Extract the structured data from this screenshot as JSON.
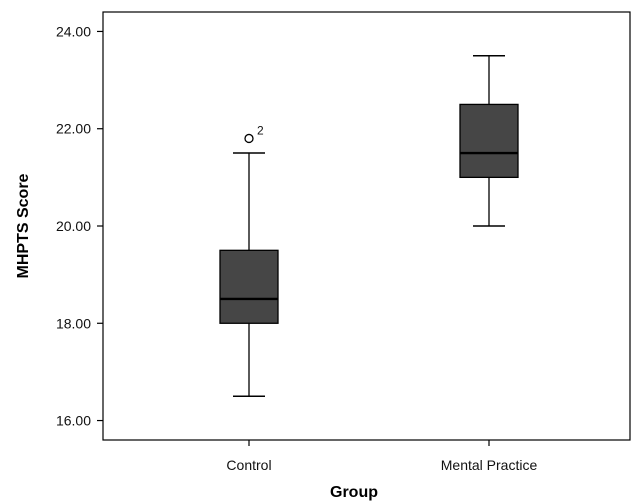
{
  "chart_data": {
    "type": "boxplot",
    "xlabel": "Group",
    "ylabel": "MHPTS Score",
    "ylim": [
      15.6,
      24.4
    ],
    "yticks": [
      16.0,
      18.0,
      20.0,
      22.0,
      24.0
    ],
    "ytick_labels": [
      "16.00",
      "18.00",
      "20.00",
      "22.00",
      "24.00"
    ],
    "grid": false,
    "legend": "none",
    "box_color": "#464646",
    "categories": [
      "Control",
      "Mental Practice"
    ],
    "boxes": [
      {
        "category": "Control",
        "whisker_low": 16.5,
        "q1": 18.0,
        "median": 18.5,
        "q3": 19.5,
        "whisker_high": 21.5,
        "outliers": [
          {
            "value": 21.8,
            "label": "2"
          }
        ]
      },
      {
        "category": "Mental Practice",
        "whisker_low": 20.0,
        "q1": 21.0,
        "median": 21.5,
        "q3": 22.5,
        "whisker_high": 23.5,
        "outliers": []
      }
    ]
  }
}
